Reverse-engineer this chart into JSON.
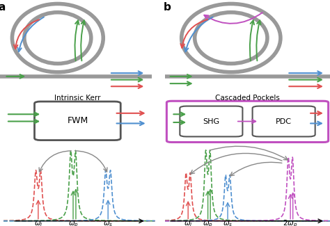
{
  "arrow_colors": {
    "red": "#e05050",
    "green": "#4aa04a",
    "blue": "#5090d0",
    "purple": "#c050c0"
  },
  "ring_color": "#999999",
  "ring_lw": 4.0,
  "box_a_color": "#555555",
  "box_b_color": "#c050c0",
  "background_color": "#ffffff",
  "fwm_label": "FWM",
  "shg_label": "SHG",
  "pdc_label": "PDC",
  "intrinsic_label": "Intrinsic Kerr",
  "cascaded_label": "Cascaded Pockels"
}
